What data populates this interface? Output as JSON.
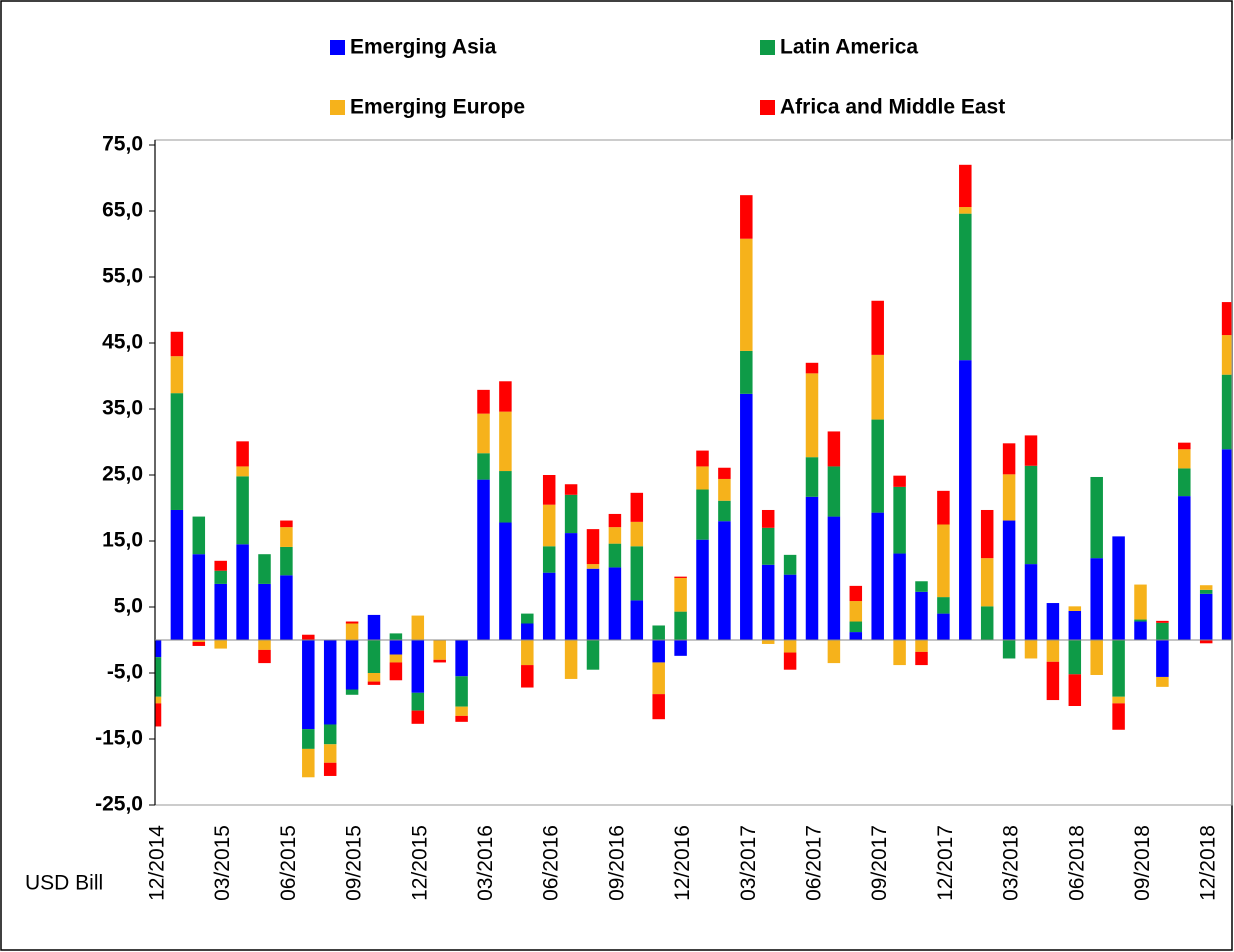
{
  "chart_data": {
    "type": "stacked_bar",
    "unit_label": "USD Bill",
    "categories": [
      "12/2014",
      null,
      null,
      "03/2015",
      null,
      null,
      "06/2015",
      null,
      null,
      "09/2015",
      null,
      null,
      "12/2015",
      null,
      null,
      "03/2016",
      null,
      null,
      "06/2016",
      null,
      null,
      "09/2016",
      null,
      null,
      "12/2016",
      null,
      null,
      "03/2017",
      null,
      null,
      "06/2017",
      null,
      null,
      "09/2017",
      null,
      null,
      "12/2017",
      null,
      null,
      "03/2018",
      null,
      null,
      "06/2018",
      null,
      null,
      "09/2018",
      null,
      null,
      "12/2018",
      null
    ],
    "series": [
      {
        "name": "Emerging Asia",
        "color": "#0000ff",
        "values": [
          -2.6,
          19.7,
          13,
          8.5,
          14.5,
          8.5,
          9.8,
          -13.5,
          -12.8,
          -7.5,
          3.8,
          -2.2,
          -8,
          0,
          -5.5,
          24.3,
          17.8,
          2.5,
          10.2,
          16.2,
          10.8,
          11,
          6,
          -3.4,
          -2.4,
          15.2,
          18,
          37.3,
          11.4,
          9.9,
          21.7,
          18.7,
          1.2,
          19.3,
          13.1,
          7.3,
          4,
          42.4,
          0,
          18.1,
          11.5,
          5.6,
          4.4,
          12.4,
          15.7,
          2.8,
          -5.6,
          21.8,
          7,
          28.9
        ]
      },
      {
        "name": "Latin America",
        "color": "#0e9b47",
        "values": [
          -6,
          17.7,
          5.7,
          2,
          10.3,
          4.5,
          4.3,
          -3,
          -3,
          -0.8,
          -5,
          1,
          -2.7,
          0,
          -4.6,
          4,
          7.8,
          1.5,
          4,
          5.8,
          -4.5,
          3.6,
          8.2,
          2.2,
          4.3,
          7.6,
          3.1,
          6.5,
          5.6,
          3,
          6,
          7.6,
          1.6,
          14.1,
          10.1,
          1.6,
          2.5,
          22.2,
          5.1,
          -2.8,
          14.9,
          0,
          -5.2,
          12.3,
          -8.6,
          0.3,
          2.6,
          4.2,
          0.6,
          11.3
        ]
      },
      {
        "name": "Emerging Europe",
        "color": "#f6b21b",
        "values": [
          -1,
          5.6,
          -0.3,
          -1.3,
          1.5,
          -1.5,
          3,
          -4.3,
          -2.8,
          2.5,
          -1.3,
          -1.2,
          3.7,
          -3,
          -1.4,
          6,
          9,
          -3.8,
          6.3,
          -5.9,
          0.7,
          2.5,
          3.7,
          -4.8,
          5.1,
          3.5,
          3.3,
          17,
          -0.6,
          -1.9,
          12.7,
          -3.5,
          3.1,
          9.8,
          -3.8,
          -1.8,
          11,
          1,
          7.3,
          7,
          -2.8,
          -3.3,
          0.7,
          -5.3,
          -1,
          5.3,
          -1.5,
          2.9,
          0.7,
          6
        ]
      },
      {
        "name": "Africa and Middle East",
        "color": "#ff0000",
        "values": [
          -3.5,
          3.7,
          -0.6,
          1.5,
          3.8,
          -2,
          1,
          0.8,
          -2,
          0.3,
          -0.5,
          -2.7,
          -2,
          -0.4,
          -0.9,
          3.6,
          4.6,
          -3.4,
          4.5,
          1.6,
          5.3,
          2,
          4.4,
          -3.8,
          0.2,
          2.4,
          1.7,
          6.6,
          2.7,
          -2.6,
          1.6,
          5.3,
          2.3,
          8.2,
          1.7,
          -2,
          5.1,
          6.4,
          7.3,
          4.7,
          4.6,
          -5.8,
          -4.8,
          0,
          -4,
          0,
          0.3,
          1,
          -0.5,
          5
        ]
      }
    ],
    "ylim": [
      -25,
      75
    ],
    "yticks": [
      {
        "value": -25,
        "label": "-25,0"
      },
      {
        "value": -15,
        "label": "-15,0"
      },
      {
        "value": -5,
        "label": "-5,0"
      },
      {
        "value": 5,
        "label": "5,0"
      },
      {
        "value": 15,
        "label": "15,0"
      },
      {
        "value": 25,
        "label": "25,0"
      },
      {
        "value": 35,
        "label": "35,0"
      },
      {
        "value": 45,
        "label": "45,0"
      },
      {
        "value": 55,
        "label": "55,0"
      },
      {
        "value": 65,
        "label": "65,0"
      },
      {
        "value": 75,
        "label": "75,0"
      }
    ],
    "grid": false
  }
}
